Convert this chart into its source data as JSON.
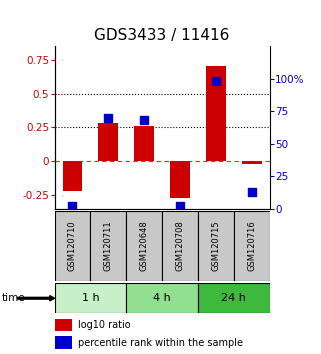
{
  "title": "GDS3433 / 11416",
  "samples": [
    "GSM120710",
    "GSM120711",
    "GSM120648",
    "GSM120708",
    "GSM120715",
    "GSM120716"
  ],
  "groups": [
    {
      "label": "1 h",
      "indices": [
        0,
        1
      ],
      "color": "#c8f0c8"
    },
    {
      "label": "4 h",
      "indices": [
        2,
        3
      ],
      "color": "#90e090"
    },
    {
      "label": "24 h",
      "indices": [
        4,
        5
      ],
      "color": "#3dba3d"
    }
  ],
  "log10_ratio": [
    -0.22,
    0.28,
    0.26,
    -0.27,
    0.7,
    -0.02
  ],
  "percentile_rank": [
    2,
    70,
    68,
    2,
    98,
    13
  ],
  "ylim_left": [
    -0.35,
    0.85
  ],
  "ylim_right": [
    0,
    125
  ],
  "yticks_left": [
    -0.25,
    0,
    0.25,
    0.5,
    0.75
  ],
  "yticks_right": [
    0,
    25,
    50,
    75,
    100
  ],
  "ytick_labels_right": [
    "0",
    "25",
    "50",
    "75",
    "100%"
  ],
  "hlines_dotted": [
    0.25,
    0.5
  ],
  "hline_dashed": 0,
  "bar_color": "#cc0000",
  "dot_color": "#0000cc",
  "bar_width": 0.55,
  "dot_size": 28,
  "legend_items": [
    "log10 ratio",
    "percentile rank within the sample"
  ],
  "time_label": "time",
  "sample_box_color": "#c8c8c8",
  "title_fontsize": 11,
  "tick_fontsize": 7.5,
  "label_fontsize": 8
}
